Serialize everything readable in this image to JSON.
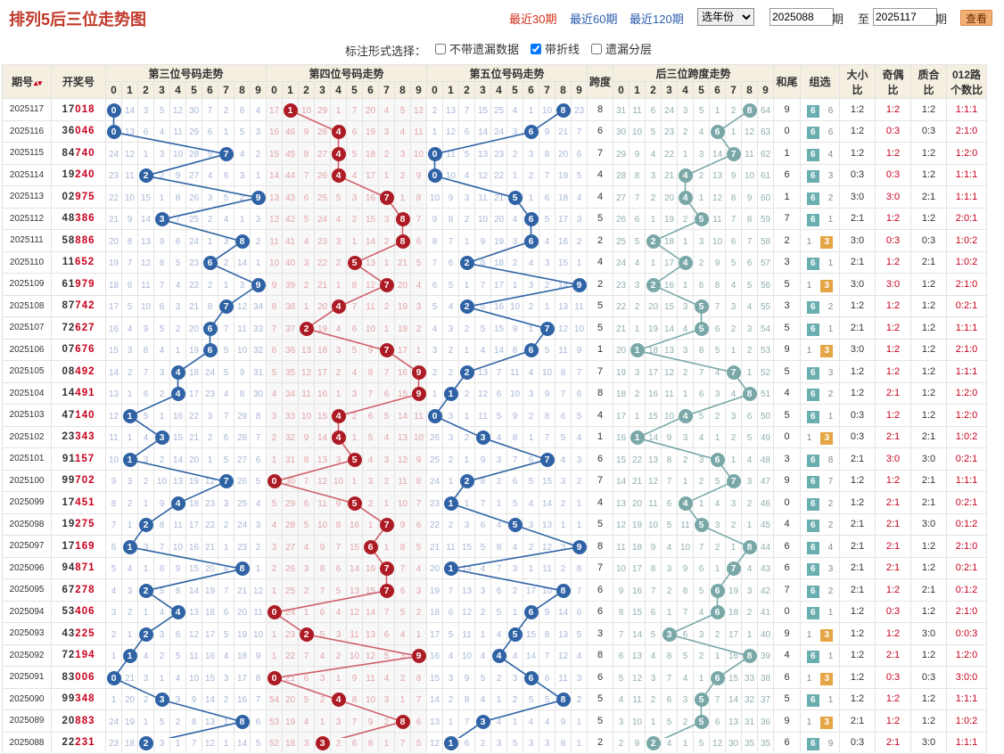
{
  "title": "排列5后三位走势图",
  "periods": [
    {
      "label": "最近30期",
      "active": true
    },
    {
      "label": "最近60期",
      "active": false
    },
    {
      "label": "最近120期",
      "active": false
    }
  ],
  "year_select": {
    "value": "选年份"
  },
  "range": {
    "from": "2025088",
    "to": "2025117",
    "label_period": "期",
    "label_to": "至",
    "label_period2": "期"
  },
  "query_button": "查看",
  "marker": {
    "label": "标注形式选择：",
    "options": [
      {
        "label": "不带遗漏数据",
        "checked": false
      },
      {
        "label": "带折线",
        "checked": true
      },
      {
        "label": "遗漏分层",
        "checked": false
      }
    ]
  },
  "headers": {
    "issue": "期号",
    "draw": "开奖号",
    "g3": "第三位号码走势",
    "g4": "第四位号码走势",
    "g5": "第五位号码走势",
    "span": "跨度",
    "spantrend": "后三位跨度走势",
    "tail": "和尾",
    "group": "组选",
    "bs1": "大小",
    "bs2": "比",
    "oe1": "奇偶",
    "oe2": "比",
    "pc1": "质合",
    "pc2": "比",
    "r1": "012路",
    "r2": "个数比",
    "digits": [
      "0",
      "1",
      "2",
      "3",
      "4",
      "5",
      "6",
      "7",
      "8",
      "9"
    ]
  },
  "rows": [
    {
      "issue": "2025117",
      "draw": "17018",
      "span": "8",
      "tail": "9",
      "group": "6",
      "group_alt": "6",
      "bs": "1:2",
      "oe": "1:2",
      "pc": "1:2",
      "r": "1:1:1"
    },
    {
      "issue": "2025116",
      "draw": "36046",
      "span": "6",
      "tail": "0",
      "group": "6",
      "group_alt": "6",
      "bs": "1:2",
      "oe": "0:3",
      "pc": "0:3",
      "r": "2:1:0"
    },
    {
      "issue": "2025115",
      "draw": "84740",
      "span": "7",
      "tail": "1",
      "group": "6",
      "group_alt": "4",
      "bs": "1:2",
      "oe": "1:2",
      "pc": "1:2",
      "r": "1:2:0"
    },
    {
      "issue": "2025114",
      "draw": "19240",
      "span": "4",
      "tail": "6",
      "group": "6",
      "group_alt": "3",
      "bs": "0:3",
      "oe": "0:3",
      "pc": "1:2",
      "r": "1:1:1"
    },
    {
      "issue": "2025113",
      "draw": "02975",
      "span": "4",
      "tail": "1",
      "group": "6",
      "group_alt": "2",
      "bs": "3:0",
      "oe": "3:0",
      "pc": "2:1",
      "r": "1:1:1"
    },
    {
      "issue": "2025112",
      "draw": "48386",
      "span": "5",
      "tail": "7",
      "group": "6",
      "group_alt": "1",
      "bs": "2:1",
      "oe": "1:2",
      "pc": "1:2",
      "r": "2:0:1"
    },
    {
      "issue": "2025111",
      "draw": "58886",
      "span": "2",
      "tail": "2",
      "group": "1",
      "group_alt": "3",
      "bs": "3:0",
      "oe": "0:3",
      "pc": "0:3",
      "r": "1:0:2"
    },
    {
      "issue": "2025110",
      "draw": "11652",
      "span": "4",
      "tail": "3",
      "group": "6",
      "group_alt": "1",
      "bs": "2:1",
      "oe": "1:2",
      "pc": "2:1",
      "r": "1:0:2"
    },
    {
      "issue": "2025109",
      "draw": "61979",
      "span": "2",
      "tail": "5",
      "group": "1",
      "group_alt": "3",
      "bs": "3:0",
      "oe": "3:0",
      "pc": "1:2",
      "r": "2:1:0"
    },
    {
      "issue": "2025108",
      "draw": "87742",
      "span": "5",
      "tail": "3",
      "group": "6",
      "group_alt": "2",
      "bs": "1:2",
      "oe": "1:2",
      "pc": "1:2",
      "r": "0:2:1"
    },
    {
      "issue": "2025107",
      "draw": "72627",
      "span": "5",
      "tail": "5",
      "group": "6",
      "group_alt": "1",
      "bs": "2:1",
      "oe": "1:2",
      "pc": "1:2",
      "r": "1:1:1"
    },
    {
      "issue": "2025106",
      "draw": "07676",
      "span": "1",
      "tail": "9",
      "group": "1",
      "group_alt": "3",
      "bs": "3:0",
      "oe": "1:2",
      "pc": "1:2",
      "r": "2:1:0"
    },
    {
      "issue": "2025105",
      "draw": "08492",
      "span": "7",
      "tail": "5",
      "group": "6",
      "group_alt": "3",
      "bs": "1:2",
      "oe": "1:2",
      "pc": "1:2",
      "r": "1:1:1"
    },
    {
      "issue": "2025104",
      "draw": "14491",
      "span": "8",
      "tail": "4",
      "group": "6",
      "group_alt": "2",
      "bs": "1:2",
      "oe": "2:1",
      "pc": "1:2",
      "r": "1:2:0"
    },
    {
      "issue": "2025103",
      "draw": "47140",
      "span": "4",
      "tail": "5",
      "group": "6",
      "group_alt": "1",
      "bs": "0:3",
      "oe": "1:2",
      "pc": "1:2",
      "r": "1:2:0"
    },
    {
      "issue": "2025102",
      "draw": "23343",
      "span": "1",
      "tail": "0",
      "group": "1",
      "group_alt": "3",
      "bs": "0:3",
      "oe": "2:1",
      "pc": "2:1",
      "r": "1:0:2"
    },
    {
      "issue": "2025101",
      "draw": "91157",
      "span": "6",
      "tail": "3",
      "group": "6",
      "group_alt": "8",
      "bs": "2:1",
      "oe": "3:0",
      "pc": "3:0",
      "r": "0:2:1"
    },
    {
      "issue": "2025100",
      "draw": "99702",
      "span": "7",
      "tail": "9",
      "group": "6",
      "group_alt": "7",
      "bs": "1:2",
      "oe": "1:2",
      "pc": "2:1",
      "r": "1:1:1"
    },
    {
      "issue": "2025099",
      "draw": "17451",
      "span": "4",
      "tail": "0",
      "group": "6",
      "group_alt": "2",
      "bs": "1:2",
      "oe": "2:1",
      "pc": "2:1",
      "r": "0:2:1"
    },
    {
      "issue": "2025098",
      "draw": "19275",
      "span": "5",
      "tail": "4",
      "group": "6",
      "group_alt": "2",
      "bs": "2:1",
      "oe": "2:1",
      "pc": "3:0",
      "r": "0:1:2"
    },
    {
      "issue": "2025097",
      "draw": "17169",
      "span": "8",
      "tail": "6",
      "group": "6",
      "group_alt": "4",
      "bs": "2:1",
      "oe": "2:1",
      "pc": "1:2",
      "r": "2:1:0"
    },
    {
      "issue": "2025096",
      "draw": "94871",
      "span": "7",
      "tail": "6",
      "group": "6",
      "group_alt": "3",
      "bs": "2:1",
      "oe": "2:1",
      "pc": "1:2",
      "r": "0:2:1"
    },
    {
      "issue": "2025095",
      "draw": "67278",
      "span": "6",
      "tail": "7",
      "group": "6",
      "group_alt": "2",
      "bs": "2:1",
      "oe": "1:2",
      "pc": "2:1",
      "r": "0:1:2"
    },
    {
      "issue": "2025094",
      "draw": "53406",
      "span": "6",
      "tail": "0",
      "group": "6",
      "group_alt": "1",
      "bs": "1:2",
      "oe": "0:3",
      "pc": "1:2",
      "r": "2:1:0"
    },
    {
      "issue": "2025093",
      "draw": "43225",
      "span": "3",
      "tail": "9",
      "group": "1",
      "group_alt": "3",
      "bs": "1:2",
      "oe": "1:2",
      "pc": "3:0",
      "r": "0:0:3"
    },
    {
      "issue": "2025092",
      "draw": "72194",
      "span": "8",
      "tail": "4",
      "group": "6",
      "group_alt": "1",
      "bs": "1:2",
      "oe": "2:1",
      "pc": "1:2",
      "r": "1:2:0"
    },
    {
      "issue": "2025091",
      "draw": "83006",
      "span": "6",
      "tail": "6",
      "group": "1",
      "group_alt": "3",
      "bs": "1:2",
      "oe": "0:3",
      "pc": "0:3",
      "r": "3:0:0"
    },
    {
      "issue": "2025090",
      "draw": "99348",
      "span": "5",
      "tail": "5",
      "group": "6",
      "group_alt": "1",
      "bs": "1:2",
      "oe": "1:2",
      "pc": "1:2",
      "r": "1:1:1"
    },
    {
      "issue": "2025089",
      "draw": "20883",
      "span": "5",
      "tail": "9",
      "group": "1",
      "group_alt": "3",
      "bs": "2:1",
      "oe": "1:2",
      "pc": "1:2",
      "r": "1:0:2"
    },
    {
      "issue": "2025088",
      "draw": "22231",
      "span": "2",
      "tail": "6",
      "group": "6",
      "group_alt": "9",
      "bs": "0:3",
      "oe": "2:1",
      "pc": "3:0",
      "r": "1:1:1"
    }
  ],
  "miss": {
    "p3": [
      "0,14,3,5,12,30,7,2,6,4",
      "0,13,6,4,11,29,6,1,5,3",
      "24,12,1,3,10,28,5,7,4,2",
      "23,11,2,2,9,27,4,6,3,1",
      "22,10,15,1,8,26,3,5,2,9",
      "21,9,14,3,7,25,2,4,1,3",
      "20,8,13,9,6,24,1,3,8,2",
      "19,7,12,8,5,23,6,2,14,1",
      "18,6,11,7,4,22,2,1,3,9",
      "17,5,10,6,3,21,8,7,12,34",
      "16,4,9,5,2,20,6,7,11,33",
      "15,3,8,4,1,19,6,5,10,32",
      "14,2,7,3,4,18,24,5,9,31",
      "13,1,6,2,4,17,23,4,8,30",
      "12,1,5,1,16,22,3,7,29,8",
      "11,1,4,3,15,21,2,6,28,7",
      "10,1,3,2,14,20,1,5,27,6",
      "9,3,2,10,13,19,12,7,26,5",
      "8,2,1,9,4,18,23,3,25,4",
      "7,1,2,8,11,17,22,2,24,3",
      "6,1,3,7,10,16,21,1,23,2",
      "5,4,1,6,9,15,20,8,22,1",
      "4,3,2,5,8,14,19,7,21,12",
      "3,2,1,4,4,13,18,6,20,11",
      "2,1,2,3,6,12,17,5,19,10",
      "1,1,4,2,5,11,16,4,18,9",
      "0,21,3,1,4,10,15,3,17,8",
      "1,20,2,3,3,9,14,2,16,7",
      "24,19,1,5,2,8,13,1,8,6",
      "23,18,2,3,1,7,12,1,14,5"
    ],
    "p4": [
      "17,1,10,29,1,7,20,4,5,12",
      "16,46,9,28,4,6,19,3,4,11",
      "15,45,8,27,4,5,18,2,3,10",
      "14,44,7,26,4,4,17,1,2,9",
      "13,43,6,25,5,3,16,7,1,8",
      "12,42,5,24,4,2,15,3,8,7",
      "11,41,4,23,3,1,14,2,8,6",
      "10,40,3,22,2,5,13,1,21,5",
      "9,39,2,21,1,8,12,7,20,4",
      "8,38,1,20,4,7,11,2,19,3",
      "7,37,2,19,4,6,10,1,18,2",
      "6,36,13,18,3,5,9,7,17,1",
      "5,35,12,17,2,4,8,7,16,9",
      "4,34,11,16,1,3,7,6,15,9",
      "3,33,10,15,4,2,6,5,14,11",
      "2,32,9,14,4,1,5,4,13,10",
      "1,31,8,13,3,5,4,3,12,9",
      "0,30,7,12,10,1,3,2,11,8",
      "5,29,6,11,9,5,2,1,10,7",
      "4,28,5,10,8,16,1,7,9,6",
      "3,27,4,9,7,15,6,1,8,5",
      "2,26,3,8,6,14,16,7,7,4",
      "1,25,2,7,5,13,15,7,6,3",
      "0,24,1,6,4,12,14,7,5,2",
      "1,23,2,5,3,11,13,6,4,1",
      "1,22,7,4,2,10,12,5,3,9",
      "0,21,6,3,1,9,11,4,2,8",
      "54,20,5,2,4,8,10,3,1,7",
      "53,19,4,1,3,7,9,2,8,6",
      "52,18,3,3,2,6,8,1,7,5"
    ],
    "p5": [
      "2,13,7,15,25,4,1,10,8,23",
      "1,12,6,14,24,3,6,9,21,7",
      "0,11,5,13,23,2,3,8,20,6",
      "0,10,4,12,22,1,2,7,19,5",
      "10,9,3,11,21,5,1,6,18,4",
      "9,8,2,10,20,4,6,5,17,3",
      "8,7,1,9,19,3,6,4,16,2",
      "7,6,2,8,18,2,4,3,15,1",
      "6,5,1,7,17,1,3,2,14,9",
      "5,4,2,6,16,10,2,1,13,11",
      "4,3,2,5,15,9,1,7,12,10",
      "3,2,1,4,14,8,6,5,11,9",
      "2,2,3,13,7,11,4,10,8,7",
      "1,1,2,12,6,10,3,9,7,6",
      "0,3,1,11,5,9,2,8,6,5",
      "26,3,2,3,4,8,1,7,5,4",
      "25,2,1,9,3,7,6,7,4,3",
      "24,1,2,8,2,6,5,15,3,2",
      "23,1,1,7,1,5,4,14,2,1",
      "22,2,3,6,4,5,3,13,1,1",
      "21,11,15,5,8,4,2,12,3,9",
      "20,1,14,4,7,3,1,11,2,8",
      "19,7,13,3,6,2,17,10,8,7",
      "18,6,12,2,5,1,6,9,14,6",
      "17,5,11,1,4,5,15,8,13,5",
      "16,4,10,4,3,4,14,7,12,4",
      "15,3,9,5,2,3,6,6,11,3",
      "14,2,8,4,1,2,5,5,8,2",
      "13,1,7,3,4,1,4,4,9,1",
      "12,1,6,2,3,5,3,3,8,1"
    ],
    "sp": [
      "31,11,6,24,3,5,1,2,8,64",
      "30,10,5,23,2,4,6,1,12,63",
      "29,9,4,22,1,3,14,7,11,62",
      "28,8,3,21,4,2,13,9,10,61",
      "27,7,2,20,4,1,12,8,9,60",
      "26,6,1,19,2,5,11,7,8,59",
      "25,5,2,18,1,3,10,6,7,58",
      "24,4,1,17,4,2,9,5,6,57",
      "23,3,2,16,1,6,8,4,5,56",
      "22,2,20,15,3,5,7,3,4,55",
      "21,1,19,14,4,5,6,2,3,54",
      "20,1,18,13,3,8,5,1,2,53",
      "19,3,17,12,2,7,4,7,1,52",
      "18,2,16,11,1,6,3,4,8,51",
      "17,1,15,10,4,5,2,3,6,50",
      "16,1,14,9,3,4,1,2,5,49",
      "15,22,13,8,2,3,6,1,4,48",
      "14,21,12,7,1,2,5,7,3,47",
      "13,20,11,6,4,1,4,3,2,46",
      "12,19,10,5,11,5,3,2,1,45",
      "11,18,9,4,10,7,2,1,8,44",
      "10,17,8,3,9,6,1,7,4,43",
      "9,16,7,2,8,5,6,19,3,42",
      "8,15,6,1,7,4,6,18,2,41",
      "7,14,5,3,6,3,2,17,1,40",
      "6,13,4,8,5,2,1,16,8,39",
      "5,12,3,7,4,1,6,15,33,38",
      "4,11,2,6,3,5,7,14,32,37",
      "3,10,1,5,2,5,6,13,31,36",
      "2,9,2,4,1,5,12,30,35,35"
    ]
  },
  "colors": {
    "p3": "#2f63a5",
    "p4": "#ad1c25",
    "p5": "#2f63a5",
    "span": "#7aa8a8",
    "title": "#c0392b",
    "header_bg": "#f5efe1"
  }
}
